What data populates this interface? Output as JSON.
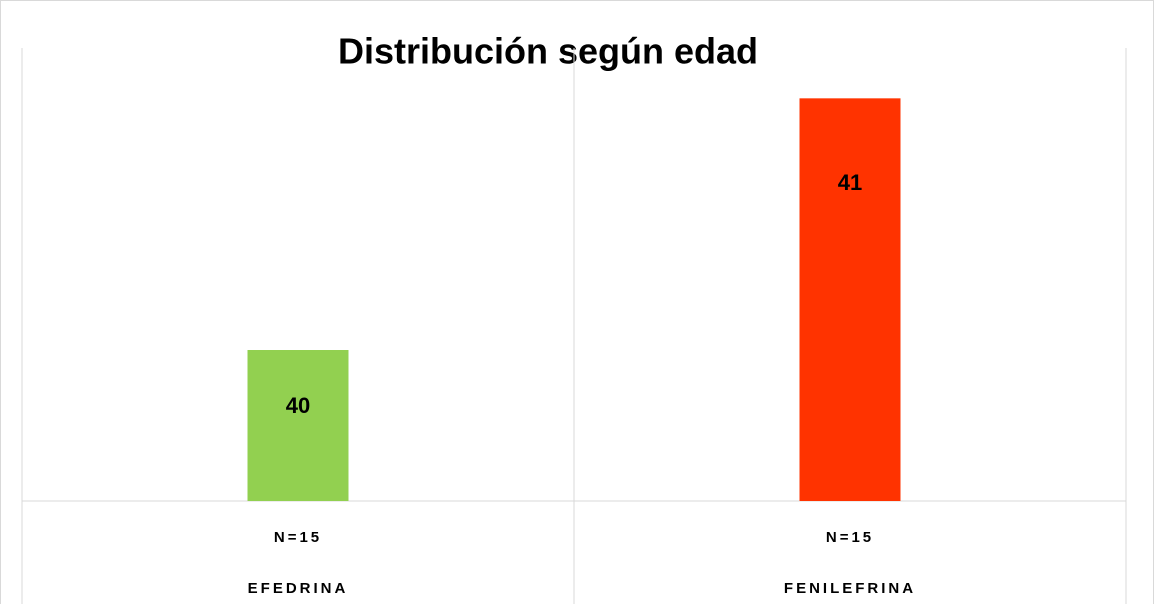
{
  "chart_data": {
    "type": "bar",
    "title": "Distribución según edad",
    "categories": [
      "N=15",
      "N=15"
    ],
    "groups": [
      "EFEDRINA",
      "FENILEFRINA"
    ],
    "values": [
      40,
      41
    ],
    "colors": [
      "#92d050",
      "#ff3300"
    ],
    "ylim": [
      39.4,
      41.2
    ]
  }
}
